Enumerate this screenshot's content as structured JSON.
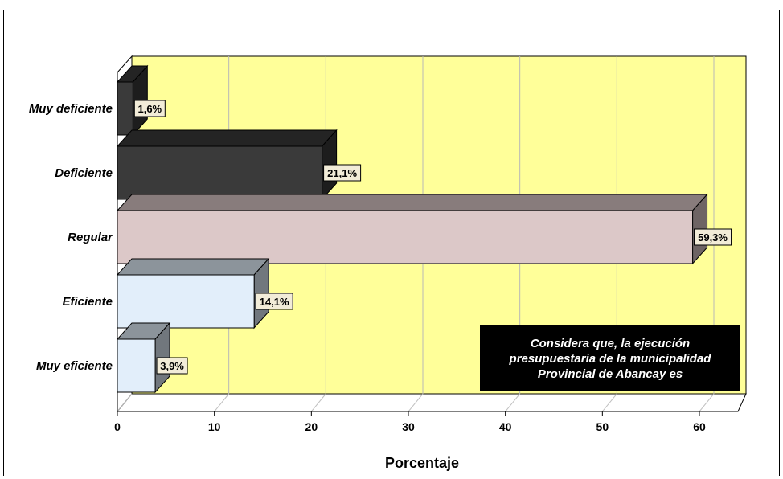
{
  "chart_data": {
    "type": "bar",
    "orientation": "horizontal",
    "style": "3d",
    "categories": [
      "Muy deficiente",
      "Deficiente",
      "Regular",
      "Eficiente",
      "Muy eficiente"
    ],
    "values": [
      1.6,
      21.1,
      59.3,
      14.1,
      3.9
    ],
    "data_labels": [
      "1,6%",
      "21,1%",
      "59,3%",
      "14,1%",
      "3,9%"
    ],
    "xlabel": "Porcentaje",
    "ylabel": "",
    "xlim": [
      0,
      60
    ],
    "xticks": [
      0,
      10,
      20,
      30,
      40,
      50,
      60
    ],
    "grid": true,
    "colors": {
      "bars": [
        "#3a3a3a",
        "#3a3a3a",
        "#dcc8c8",
        "#e2eefa",
        "#e2eefa"
      ],
      "background": "#ffff99"
    },
    "annotation": [
      "Considera que, la ejecución",
      "presupuestaria de la municipalidad",
      "Provincial de Abancay es"
    ]
  }
}
